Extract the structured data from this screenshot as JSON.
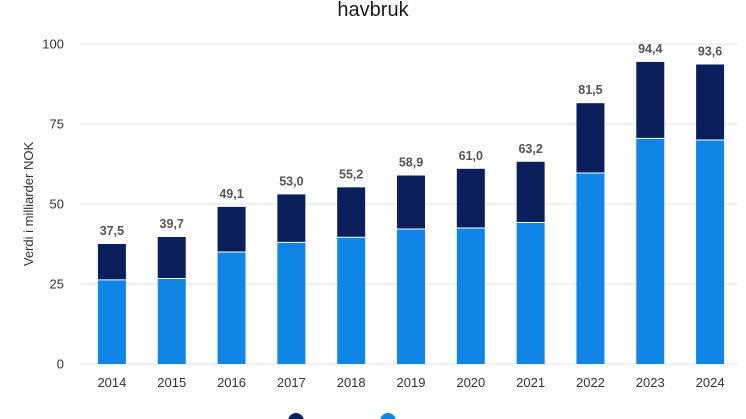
{
  "chart_data": {
    "type": "bar",
    "stacked": true,
    "title": "havbruk",
    "ylabel": "Verdi i milliarder NOK",
    "xlabel": "",
    "ylim": [
      0,
      100
    ],
    "yticks": [
      0,
      25,
      50,
      75,
      100
    ],
    "grid": true,
    "legend_position": "bottom",
    "categories": [
      "2014",
      "2015",
      "2016",
      "2017",
      "2018",
      "2019",
      "2020",
      "2021",
      "2022",
      "2023",
      "2024"
    ],
    "series": [
      {
        "name": "",
        "color": "#0f86e6",
        "values": [
          26.3,
          26.7,
          35.0,
          38.0,
          39.6,
          42.2,
          42.5,
          44.2,
          59.7,
          70.5,
          70.0
        ]
      },
      {
        "name": "",
        "color": "#0a1f5c",
        "values": [
          11.2,
          13.0,
          14.1,
          15.0,
          15.6,
          16.7,
          18.5,
          19.0,
          21.8,
          23.9,
          23.6
        ]
      }
    ],
    "totals": [
      "37,5",
      "39,7",
      "49,1",
      "53,0",
      "55,2",
      "58,9",
      "61,0",
      "63,2",
      "81,5",
      "94,4",
      "93,6"
    ]
  }
}
